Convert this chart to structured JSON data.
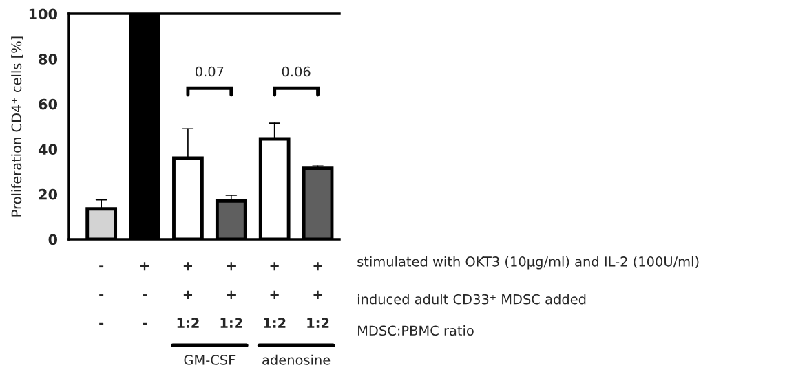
{
  "chart_data": {
    "type": "bar",
    "ylabel": "Proliferation CD4⁺ cells [%]",
    "categories": [
      "-\n-\n-",
      "+\n-\n-",
      "+\n+\n1:2",
      "+\n+\n1:2",
      "+\n+\n1:2",
      "+\n+\n1:2"
    ],
    "values": [
      13.5,
      100,
      36,
      17,
      44.5,
      31.5
    ],
    "colors": [
      "#d3d3d3",
      "#000000",
      "#ffffff",
      "#5f5f5f",
      "#ffffff",
      "#5f5f5f"
    ],
    "errors": [
      [
        13.5,
        17.5
      ],
      null,
      [
        36,
        49
      ],
      [
        17,
        19.5
      ],
      [
        44.5,
        51.5
      ],
      [
        31.5,
        32.5
      ]
    ],
    "ylim": [
      0,
      100
    ],
    "yticks": [
      0,
      20,
      40,
      60,
      80,
      100
    ],
    "grid": false,
    "annotations": [
      "0.07",
      "0.06",
      "stimulated with OKT3 (10µg/ml) and IL-2 (100U/ml)",
      "induced adult CD33⁺ MDSC added",
      "MDSC:PBMC ratio",
      "GM-CSF",
      "adenosine"
    ]
  }
}
